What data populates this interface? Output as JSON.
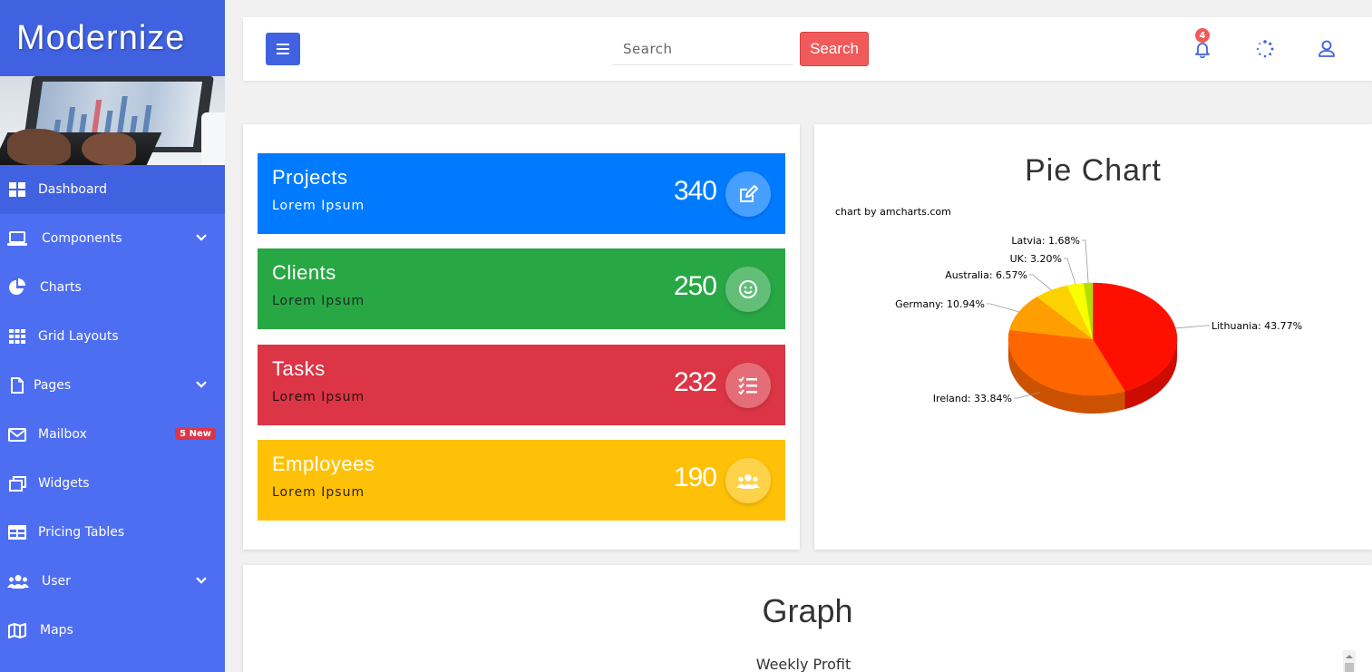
{
  "brand": "Modernize",
  "sidebar": {
    "items": [
      {
        "label": "Dashboard",
        "icon": "grid-icon"
      },
      {
        "label": "Components",
        "icon": "laptop-icon"
      },
      {
        "label": "Charts",
        "icon": "pie-icon"
      },
      {
        "label": "Grid Layouts",
        "icon": "grid-layout-icon"
      },
      {
        "label": "Pages",
        "icon": "file-icon"
      },
      {
        "label": "Mailbox",
        "icon": "envelope-icon",
        "badge": "5 New"
      },
      {
        "label": "Widgets",
        "icon": "window-icon"
      },
      {
        "label": "Pricing Tables",
        "icon": "table-icon"
      },
      {
        "label": "User",
        "icon": "users-icon"
      },
      {
        "label": "Maps",
        "icon": "map-icon"
      }
    ]
  },
  "header": {
    "search_placeholder": "Search",
    "search_button": "Search",
    "notification_count": "4"
  },
  "stats": [
    {
      "title": "Projects",
      "subtitle": "Lorem Ipsum",
      "value": "340",
      "color": "#007bff",
      "icon": "edit-icon"
    },
    {
      "title": "Clients",
      "subtitle": "Lorem Ipsum",
      "value": "250",
      "color": "#28a745",
      "icon": "smile-icon"
    },
    {
      "title": "Tasks",
      "subtitle": "Lorem Ipsum",
      "value": "232",
      "color": "#dc3545",
      "icon": "tasks-icon"
    },
    {
      "title": "Employees",
      "subtitle": "Lorem Ipsum",
      "value": "190",
      "color": "#ffc107",
      "icon": "users-icon"
    }
  ],
  "pie": {
    "title": "Pie Chart",
    "credit": "chart by amcharts.com",
    "labels": [
      "Lithuania: 43.77%",
      "Ireland: 33.84%",
      "Germany: 10.94%",
      "Australia: 6.57%",
      "UK: 3.20%",
      "Latvia: 1.68%"
    ]
  },
  "graph": {
    "title": "Graph",
    "subtitle": "Weekly Profit"
  },
  "chart_data": {
    "type": "pie",
    "title": "Pie Chart",
    "categories": [
      "Lithuania",
      "Ireland",
      "Germany",
      "Australia",
      "UK",
      "Latvia"
    ],
    "values": [
      43.77,
      33.84,
      10.94,
      6.57,
      3.2,
      1.68
    ],
    "colors": [
      "#ff0f00",
      "#ff6600",
      "#ff9e01",
      "#fcd202",
      "#f8ff01",
      "#b0de09"
    ]
  }
}
